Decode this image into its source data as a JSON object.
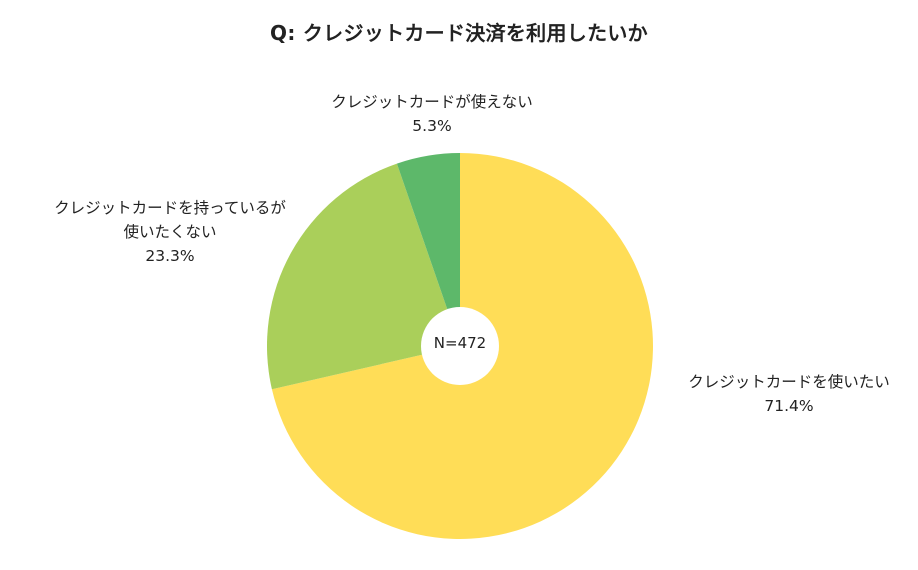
{
  "chart_data": {
    "type": "pie",
    "title": "Q: クレジットカード決済を利用したいか",
    "center_text": "N=472",
    "start_angle": "12 o'clock, clockwise",
    "donut_hole": true,
    "legend": "none (labels placed next to slices)",
    "categories": [
      "クレジットカードを使いたい",
      "クレジットカードを持っているが使いたくない",
      "クレジットカードが使えない"
    ],
    "values": [
      71.4,
      23.3,
      5.3
    ],
    "colors": [
      "#FFDD57",
      "#AACF5A",
      "#5DB86A"
    ],
    "labels": [
      {
        "lines": [
          "クレジットカードを使いたい",
          "71.4%"
        ]
      },
      {
        "lines": [
          "クレジットカードを持っているが",
          "使いたくない",
          "23.3%"
        ]
      },
      {
        "lines": [
          "クレジットカードが使えない",
          "5.3%"
        ]
      }
    ]
  }
}
